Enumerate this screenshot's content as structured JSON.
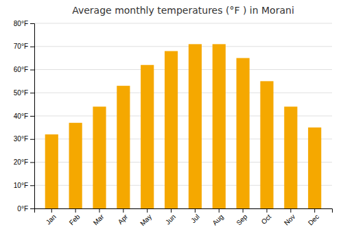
{
  "chart_data": {
    "type": "bar",
    "title": "Average monthly temperatures (°F ) in Morani",
    "categories": [
      "Jan",
      "Feb",
      "Mar",
      "Apr",
      "May",
      "Jun",
      "Jul",
      "Aug",
      "Sep",
      "Oct",
      "Nov",
      "Dec"
    ],
    "values": [
      32,
      37,
      44,
      53,
      62,
      68,
      71,
      71,
      65,
      55,
      44,
      35
    ],
    "color": "#F5A800",
    "ylim": [
      0,
      80
    ],
    "yticks": [
      {
        "value": 0,
        "label": "0°F"
      },
      {
        "value": 10,
        "label": "10°F"
      },
      {
        "value": 20,
        "label": "20°F"
      },
      {
        "value": 30,
        "label": "30°F"
      },
      {
        "value": 40,
        "label": "40°F"
      },
      {
        "value": 50,
        "label": "50°F"
      },
      {
        "value": 60,
        "label": "60°F"
      },
      {
        "value": 70,
        "label": "70°F"
      },
      {
        "value": 80,
        "label": "80°F"
      }
    ],
    "grid": true
  }
}
